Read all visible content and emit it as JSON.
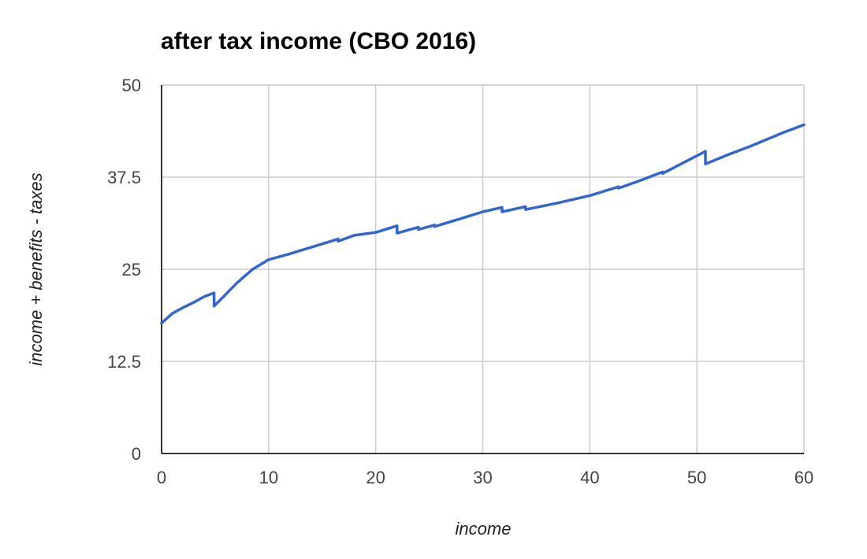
{
  "chart_data": {
    "type": "line",
    "title": "after tax income (CBO 2016)",
    "xlabel": "income",
    "ylabel": "income + benefits - taxes",
    "xlim": [
      0,
      60
    ],
    "ylim": [
      0,
      50
    ],
    "x_ticks": [
      0,
      10,
      20,
      30,
      40,
      50,
      60
    ],
    "y_ticks": [
      0,
      12.5,
      25,
      37.5,
      50
    ],
    "x_tick_labels": [
      "0",
      "10",
      "20",
      "30",
      "40",
      "50",
      "60"
    ],
    "y_tick_labels": [
      "0",
      "12.5",
      "25",
      "37.5",
      "50"
    ],
    "grid": true,
    "legend": "none",
    "series": [
      {
        "color": "#3366cc",
        "x": [
          0,
          1,
          2,
          3,
          4,
          4.9,
          4.9,
          6,
          7,
          8.5,
          10,
          12,
          14,
          16.5,
          16.5,
          18,
          20,
          22,
          22,
          24,
          24,
          25.5,
          25.5,
          28,
          30,
          31.8,
          31.8,
          34,
          34,
          37,
          40,
          42.7,
          42.7,
          45,
          46.8,
          46.8,
          50.8,
          50.8,
          53,
          55,
          58,
          60
        ],
        "y": [
          17.7,
          19.0,
          19.8,
          20.5,
          21.3,
          21.8,
          20.0,
          21.6,
          23.1,
          25.0,
          26.3,
          27.1,
          28.0,
          29.1,
          28.8,
          29.6,
          30.0,
          30.9,
          29.9,
          30.7,
          30.4,
          31.0,
          30.8,
          31.9,
          32.8,
          33.4,
          32.8,
          33.5,
          33.1,
          34.0,
          35.0,
          36.2,
          36.0,
          37.2,
          38.2,
          38.0,
          41.0,
          39.3,
          40.6,
          41.7,
          43.5,
          44.6
        ]
      }
    ]
  }
}
